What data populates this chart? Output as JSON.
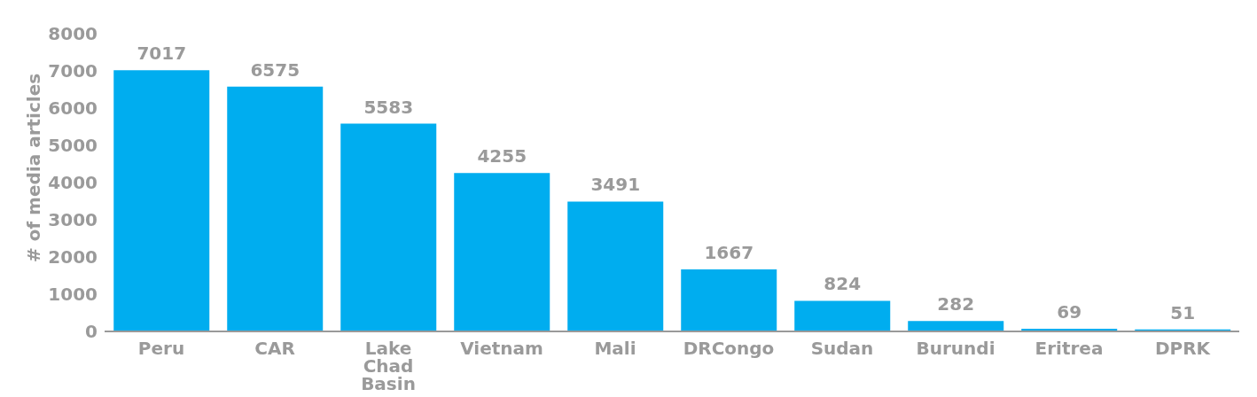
{
  "chart_data": {
    "type": "bar",
    "ylabel": "# of media articles",
    "categories": [
      "Peru",
      "CAR",
      "Lake Chad Basin",
      "Vietnam",
      "Mali",
      "DRCongo",
      "Sudan",
      "Burundi",
      "Eritrea",
      "DPRK"
    ],
    "values": [
      7017,
      6575,
      5583,
      4255,
      3491,
      1667,
      824,
      282,
      69,
      51
    ],
    "color": "#00adef",
    "ylim": [
      0,
      8000
    ],
    "yticks": [
      0,
      1000,
      2000,
      3000,
      4000,
      5000,
      6000,
      7000,
      8000
    ],
    "grid": false,
    "data_labels": true
  }
}
